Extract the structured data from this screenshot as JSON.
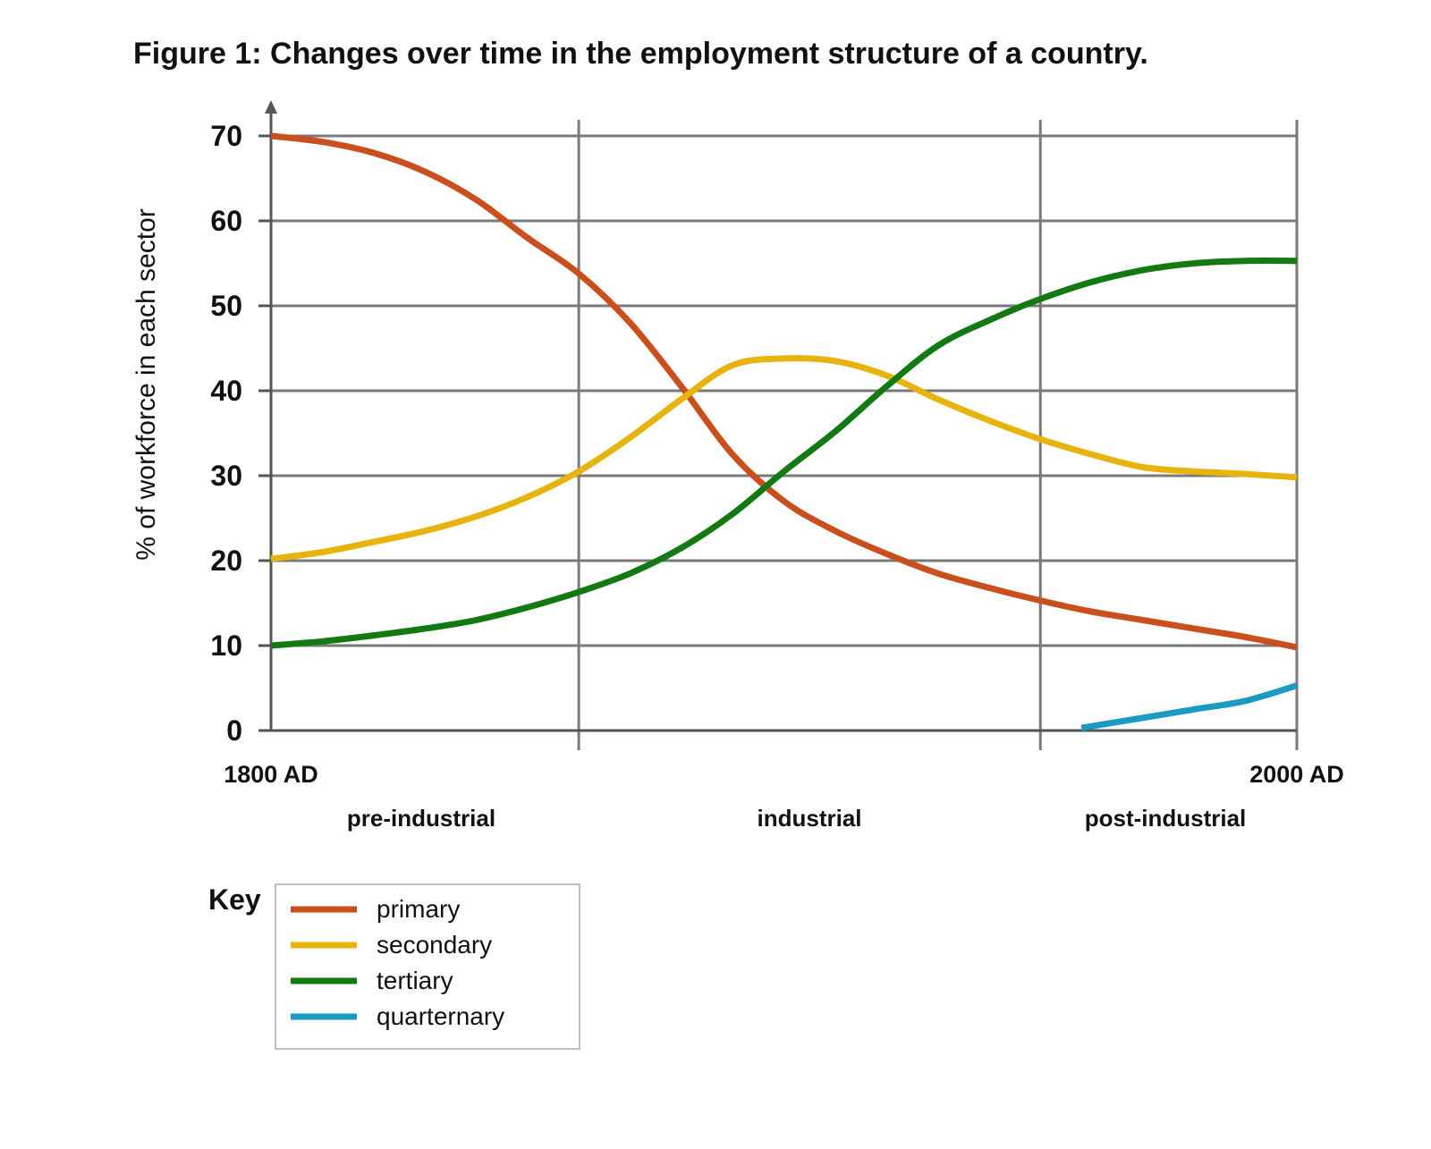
{
  "chart_data": {
    "type": "line",
    "title": "Figure 1: Changes over time in the employment structure of a country.",
    "ylabel": "% of workforce in each sector",
    "ylim": [
      0,
      70
    ],
    "yticks": [
      0,
      10,
      20,
      30,
      40,
      50,
      60,
      70
    ],
    "xlim": [
      1800,
      2000
    ],
    "x_tick_labels": [
      "1800 AD",
      "2000 AD"
    ],
    "phase_labels": [
      "pre-industrial",
      "industrial",
      "post-industrial"
    ],
    "phase_boundaries": [
      1860,
      1950
    ],
    "grid": true,
    "legend_title": "Key",
    "legend_position": "bottom-left",
    "series": [
      {
        "name": "primary",
        "color": "#c9501e",
        "x": [
          1800,
          1810,
          1820,
          1830,
          1840,
          1850,
          1860,
          1870,
          1880,
          1890,
          1900,
          1910,
          1920,
          1930,
          1940,
          1950,
          1960,
          1970,
          1980,
          1990,
          2000
        ],
        "y": [
          70,
          69.3,
          68,
          65.8,
          62.5,
          58,
          53.8,
          48,
          40.5,
          32.5,
          27,
          23.5,
          20.8,
          18.5,
          16.8,
          15.3,
          14,
          13,
          12,
          11,
          9.8
        ]
      },
      {
        "name": "secondary",
        "color": "#e6b40c",
        "x": [
          1800,
          1810,
          1820,
          1830,
          1840,
          1850,
          1860,
          1870,
          1880,
          1890,
          1900,
          1910,
          1920,
          1930,
          1940,
          1950,
          1960,
          1970,
          1980,
          1990,
          2000
        ],
        "y": [
          20.2,
          21,
          22.2,
          23.5,
          25.2,
          27.5,
          30.5,
          34.5,
          39,
          43,
          43.8,
          43.5,
          41.8,
          39,
          36.5,
          34.3,
          32.5,
          31,
          30.5,
          30.2,
          29.8
        ]
      },
      {
        "name": "tertiary",
        "color": "#137a13",
        "x": [
          1800,
          1810,
          1820,
          1830,
          1840,
          1850,
          1860,
          1870,
          1880,
          1890,
          1900,
          1910,
          1920,
          1930,
          1940,
          1950,
          1960,
          1970,
          1980,
          1990,
          2000
        ],
        "y": [
          10,
          10.5,
          11.2,
          12,
          13,
          14.5,
          16.3,
          18.5,
          21.5,
          25.5,
          30.5,
          35.2,
          40.5,
          45.3,
          48.3,
          50.8,
          52.8,
          54.2,
          55,
          55.3,
          55.3
        ]
      },
      {
        "name": "quarternary",
        "color": "#1a9bc1",
        "x": [
          1958,
          1970,
          1980,
          1990,
          2000
        ],
        "y": [
          0.3,
          1.5,
          2.5,
          3.5,
          5.3
        ]
      }
    ]
  }
}
